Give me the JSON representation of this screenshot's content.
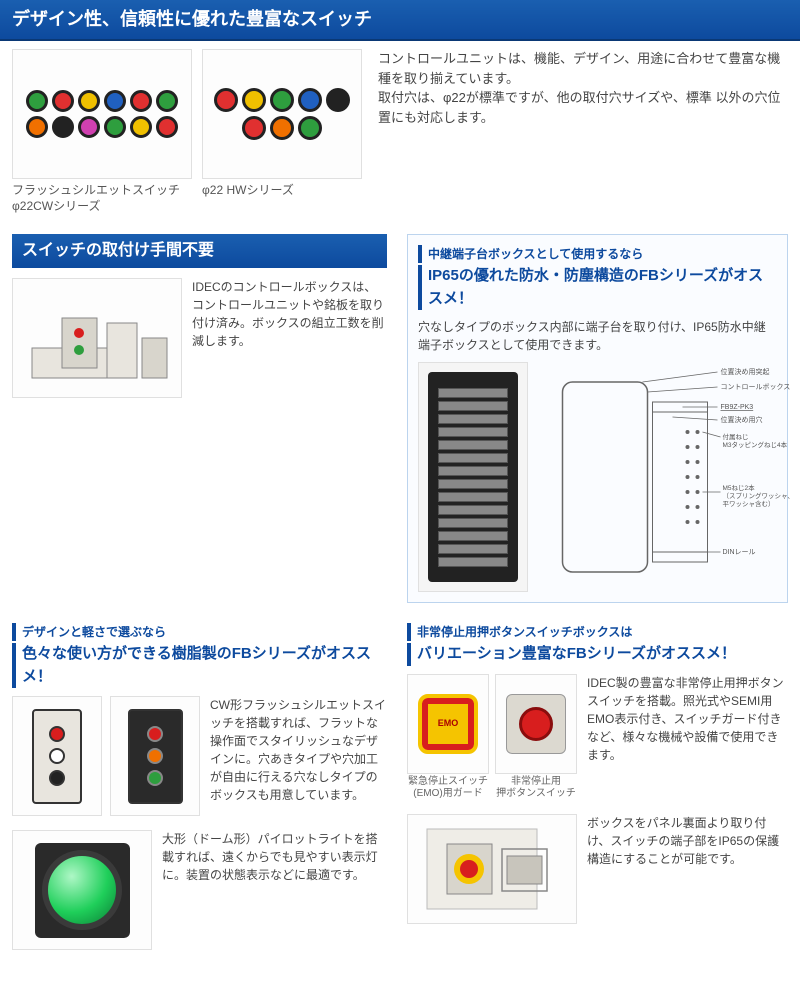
{
  "section1": {
    "title": "デザイン性、信頼性に優れた豊富なスイッチ",
    "text": "コントロールユニットは、機能、デザイン、用途に合わせて豊富な機種を取り揃えています。\n取付穴は、φ22が標準ですが、他の取付穴サイズや、標準 以外の穴位置にも対応します。",
    "img1_caption": "フラッシュシルエットスイッチ\nφ22CWシリーズ",
    "img2_caption": "φ22 HWシリーズ",
    "colors": {
      "header_gradient_top": "#1a5fb0",
      "header_gradient_bottom": "#0d4a9e",
      "accent": "#0d4a9e"
    },
    "switch_colors_1": [
      "#2e9e3e",
      "#e03030",
      "#f0c000",
      "#2060c0",
      "#e03030",
      "#2e9e3e",
      "#f07000",
      "#222",
      "#d040b0",
      "#2e9e3e",
      "#f0c000",
      "#e03030"
    ],
    "switch_colors_2": [
      "#e03030",
      "#f0c000",
      "#2e9e3e",
      "#2060c0",
      "#222",
      "#e03030",
      "#f07000",
      "#2e9e3e"
    ]
  },
  "section2": {
    "title": "スイッチの取付け手間不要",
    "text": "IDECのコントロールボックスは、コントロールユニットや銘板を取り付け済み。ボックスの組立工数を削減します。"
  },
  "fb_box": {
    "small": "中継端子台ボックスとして使用するなら",
    "large": "IP65の優れた防水・防塵構造のFBシリーズがオススメ！",
    "text": "穴なしタイプのボックス内部に端子台を取り付け、IP65防水中継端子ボックスとして使用できます。",
    "labels": {
      "l1": "位置決め用突起",
      "l2": "コントロールボックス",
      "l3": "FB9Z-PK3",
      "l4": "位置決め用穴",
      "l5": "付属ねじ\nM3タッピングねじ4本",
      "l6": "M5ねじ2本\n（スプリングワッシャ、\n平ワッシャ含む）",
      "l7": "DINレール"
    }
  },
  "feat_left": {
    "small": "デザインと軽さで選ぶなら",
    "large": "色々な使い方ができる樹脂製のFBシリーズがオススメ！",
    "block1": "CW形フラッシュシルエットスイッチを搭載すれば、フラットな操作面でスタイリッシュなデザインに。穴あきタイプや穴加工が自由に行える穴なしタイプのボックスも用意しています。",
    "block2": "大形（ドーム形）パイロットライトを搭載すれば、遠くからでも見やすい表示灯に。装置の状態表示などに最適です。",
    "pilot_color": "#1fcf5a"
  },
  "feat_right": {
    "small": "非常停止用押ボタンスイッチボックスは",
    "large": "バリエーション豊富なFBシリーズがオススメ！",
    "block1": "IDEC製の豊富な非常停止用押ボタンスイッチを搭載。照光式やSEMI用EMO表示付き、スイッチガード付きなど、様々な機械や設備で使用できます。",
    "block2": "ボックスをパネル裏面より取り付け、スイッチの端子部をIP65の保護構造にすることが可能です。",
    "emo_label": "緊急停止スイッチ\n(EMO)用ガード",
    "estop_label": "非常停止用\n押ボタンスイッチ",
    "emo_colors": {
      "guard": "#f5c400",
      "button": "#d81e1e",
      "box": "#dcd9d0"
    }
  }
}
